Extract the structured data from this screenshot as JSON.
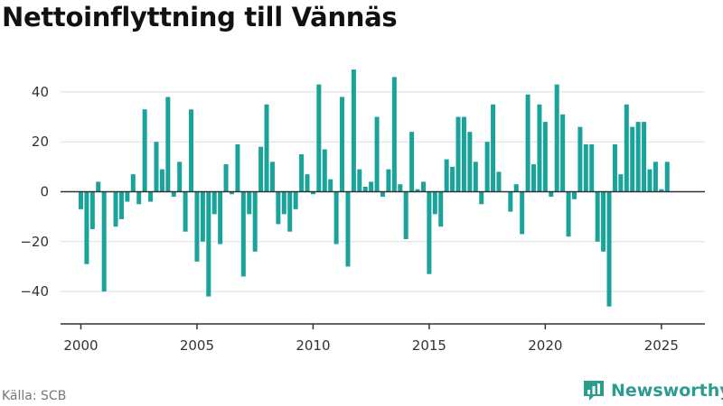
{
  "colors": {
    "bar": "#1aa39a",
    "grid": "#dddddd",
    "axis": "#333333",
    "brand": "#2c9c8e"
  },
  "branding": {
    "name": "Newsworthy",
    "icon": "newsworthy-logo-icon"
  },
  "source": "Källa: SCB",
  "chart_data": {
    "type": "bar",
    "title": "Nettoinflyttning till Vännäs",
    "xlabel": "",
    "ylabel": "",
    "y_ticks": [
      "−40",
      "−20",
      "0",
      "20",
      "40"
    ],
    "y_tick_values": [
      -40,
      -20,
      0,
      20,
      40
    ],
    "x_ticks": [
      "2000",
      "2005",
      "2010",
      "2015",
      "2020",
      "2025"
    ],
    "x_tick_values": [
      2000,
      2005,
      2010,
      2015,
      2020,
      2025
    ],
    "xlim": [
      1999.125,
      2026.875
    ],
    "ylim": [
      -53,
      53
    ],
    "grid": true,
    "legend": "none",
    "x": [
      "2000Q1",
      "2000Q2",
      "2000Q3",
      "2000Q4",
      "2001Q1",
      "2001Q2",
      "2001Q3",
      "2001Q4",
      "2002Q1",
      "2002Q2",
      "2002Q3",
      "2002Q4",
      "2003Q1",
      "2003Q2",
      "2003Q3",
      "2003Q4",
      "2004Q1",
      "2004Q2",
      "2004Q3",
      "2004Q4",
      "2005Q1",
      "2005Q2",
      "2005Q3",
      "2005Q4",
      "2006Q1",
      "2006Q2",
      "2006Q3",
      "2006Q4",
      "2007Q1",
      "2007Q2",
      "2007Q3",
      "2007Q4",
      "2008Q1",
      "2008Q2",
      "2008Q3",
      "2008Q4",
      "2009Q1",
      "2009Q2",
      "2009Q3",
      "2009Q4",
      "2010Q1",
      "2010Q2",
      "2010Q3",
      "2010Q4",
      "2011Q1",
      "2011Q2",
      "2011Q3",
      "2011Q4",
      "2012Q1",
      "2012Q2",
      "2012Q3",
      "2012Q4",
      "2013Q1",
      "2013Q2",
      "2013Q3",
      "2013Q4",
      "2014Q1",
      "2014Q2",
      "2014Q3",
      "2014Q4",
      "2015Q1",
      "2015Q2",
      "2015Q3",
      "2015Q4",
      "2016Q1",
      "2016Q2",
      "2016Q3",
      "2016Q4",
      "2017Q1",
      "2017Q2",
      "2017Q3",
      "2017Q4",
      "2018Q1",
      "2018Q2",
      "2018Q3",
      "2018Q4",
      "2019Q1",
      "2019Q2",
      "2019Q3",
      "2019Q4",
      "2020Q1",
      "2020Q2",
      "2020Q3",
      "2020Q4",
      "2021Q1",
      "2021Q2",
      "2021Q3",
      "2021Q4",
      "2022Q1",
      "2022Q2",
      "2022Q3",
      "2022Q4",
      "2023Q1",
      "2023Q2",
      "2023Q3",
      "2023Q4",
      "2024Q1",
      "2024Q2",
      "2024Q3",
      "2024Q4",
      "2025Q1",
      "2025Q2"
    ],
    "values": [
      -7,
      -29,
      -15,
      4,
      -40,
      0,
      -14,
      -11,
      -4,
      7,
      -5,
      33,
      -4,
      20,
      9,
      38,
      -2,
      12,
      -16,
      33,
      -28,
      -20,
      -42,
      -9,
      -21,
      11,
      -1,
      19,
      -34,
      -9,
      -24,
      18,
      35,
      12,
      -13,
      -9,
      -16,
      -7,
      15,
      7,
      -1,
      43,
      17,
      5,
      -21,
      38,
      -30,
      49,
      9,
      2,
      4,
      30,
      -2,
      9,
      46,
      3,
      -19,
      24,
      1,
      4,
      -33,
      -9,
      -14,
      13,
      10,
      30,
      30,
      24,
      12,
      -5,
      20,
      35,
      8,
      0,
      -8,
      3,
      -17,
      39,
      11,
      35,
      28,
      -2,
      43,
      31,
      -18,
      -3,
      26,
      19,
      19,
      -20,
      -24,
      -46,
      19,
      7,
      35,
      26,
      28,
      28,
      9,
      12,
      1,
      12
    ]
  }
}
